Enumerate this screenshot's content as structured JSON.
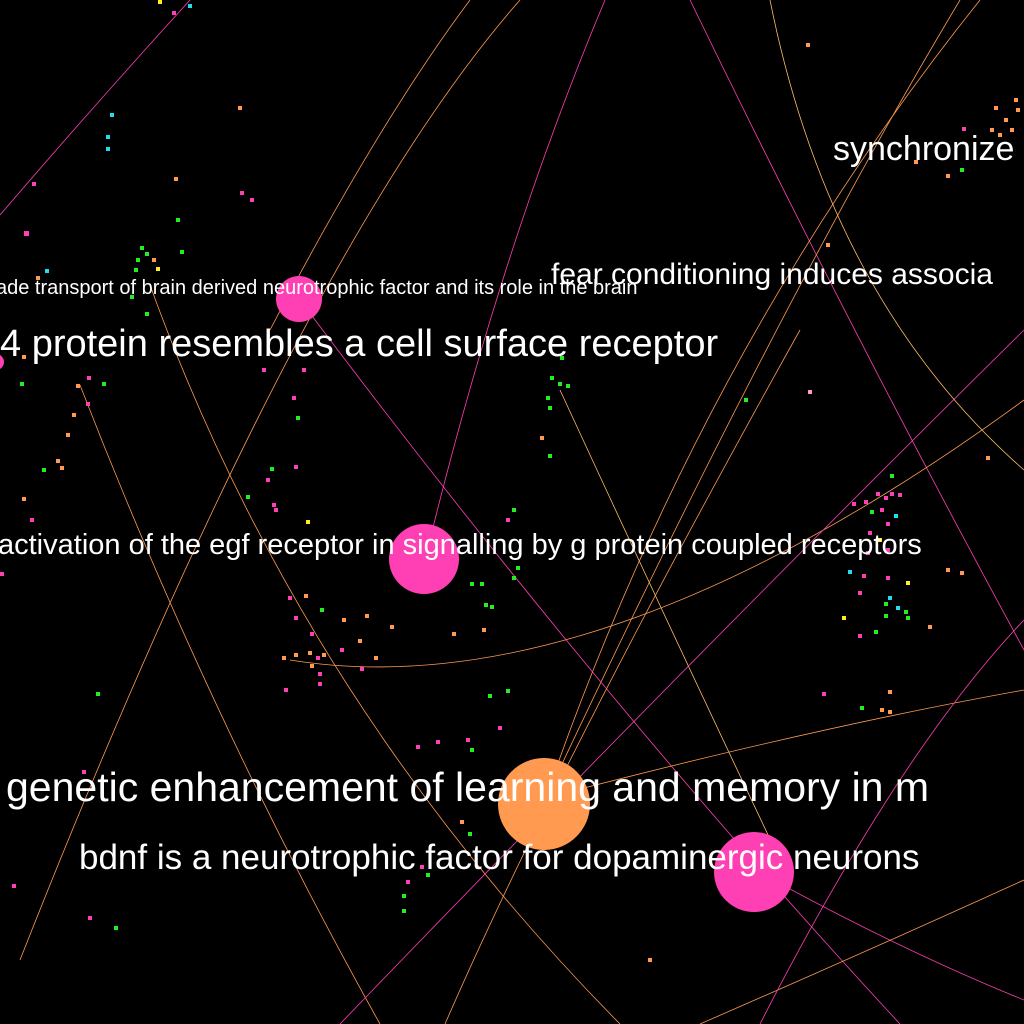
{
  "colors": {
    "background": "#000000",
    "label": "#ffffff",
    "pink": "#ff3fb4",
    "orange": "#ff9a50",
    "green": "#22ee22",
    "cyan": "#22ddee",
    "yellow": "#ffee22"
  },
  "labels": [
    {
      "id": "synchronize",
      "text": "synchronize"
    },
    {
      "id": "fear-conditioning",
      "text": "fear conditioning induces associa"
    },
    {
      "id": "retrograde-transport",
      "text": "ade transport of brain derived neurotrophic factor and its role in the brain"
    },
    {
      "id": "cell-surface-receptor",
      "text": "4 protein resembles a cell surface receptor"
    },
    {
      "id": "egf-receptor",
      "text": "activation of the egf receptor in signalling by g protein coupled receptors"
    },
    {
      "id": "genetic-enhancement",
      "text": "genetic enhancement of learning and memory in m"
    },
    {
      "id": "bdnf",
      "text": "bdnf is a neurotrophic factor for dopaminergic neurons"
    }
  ]
}
